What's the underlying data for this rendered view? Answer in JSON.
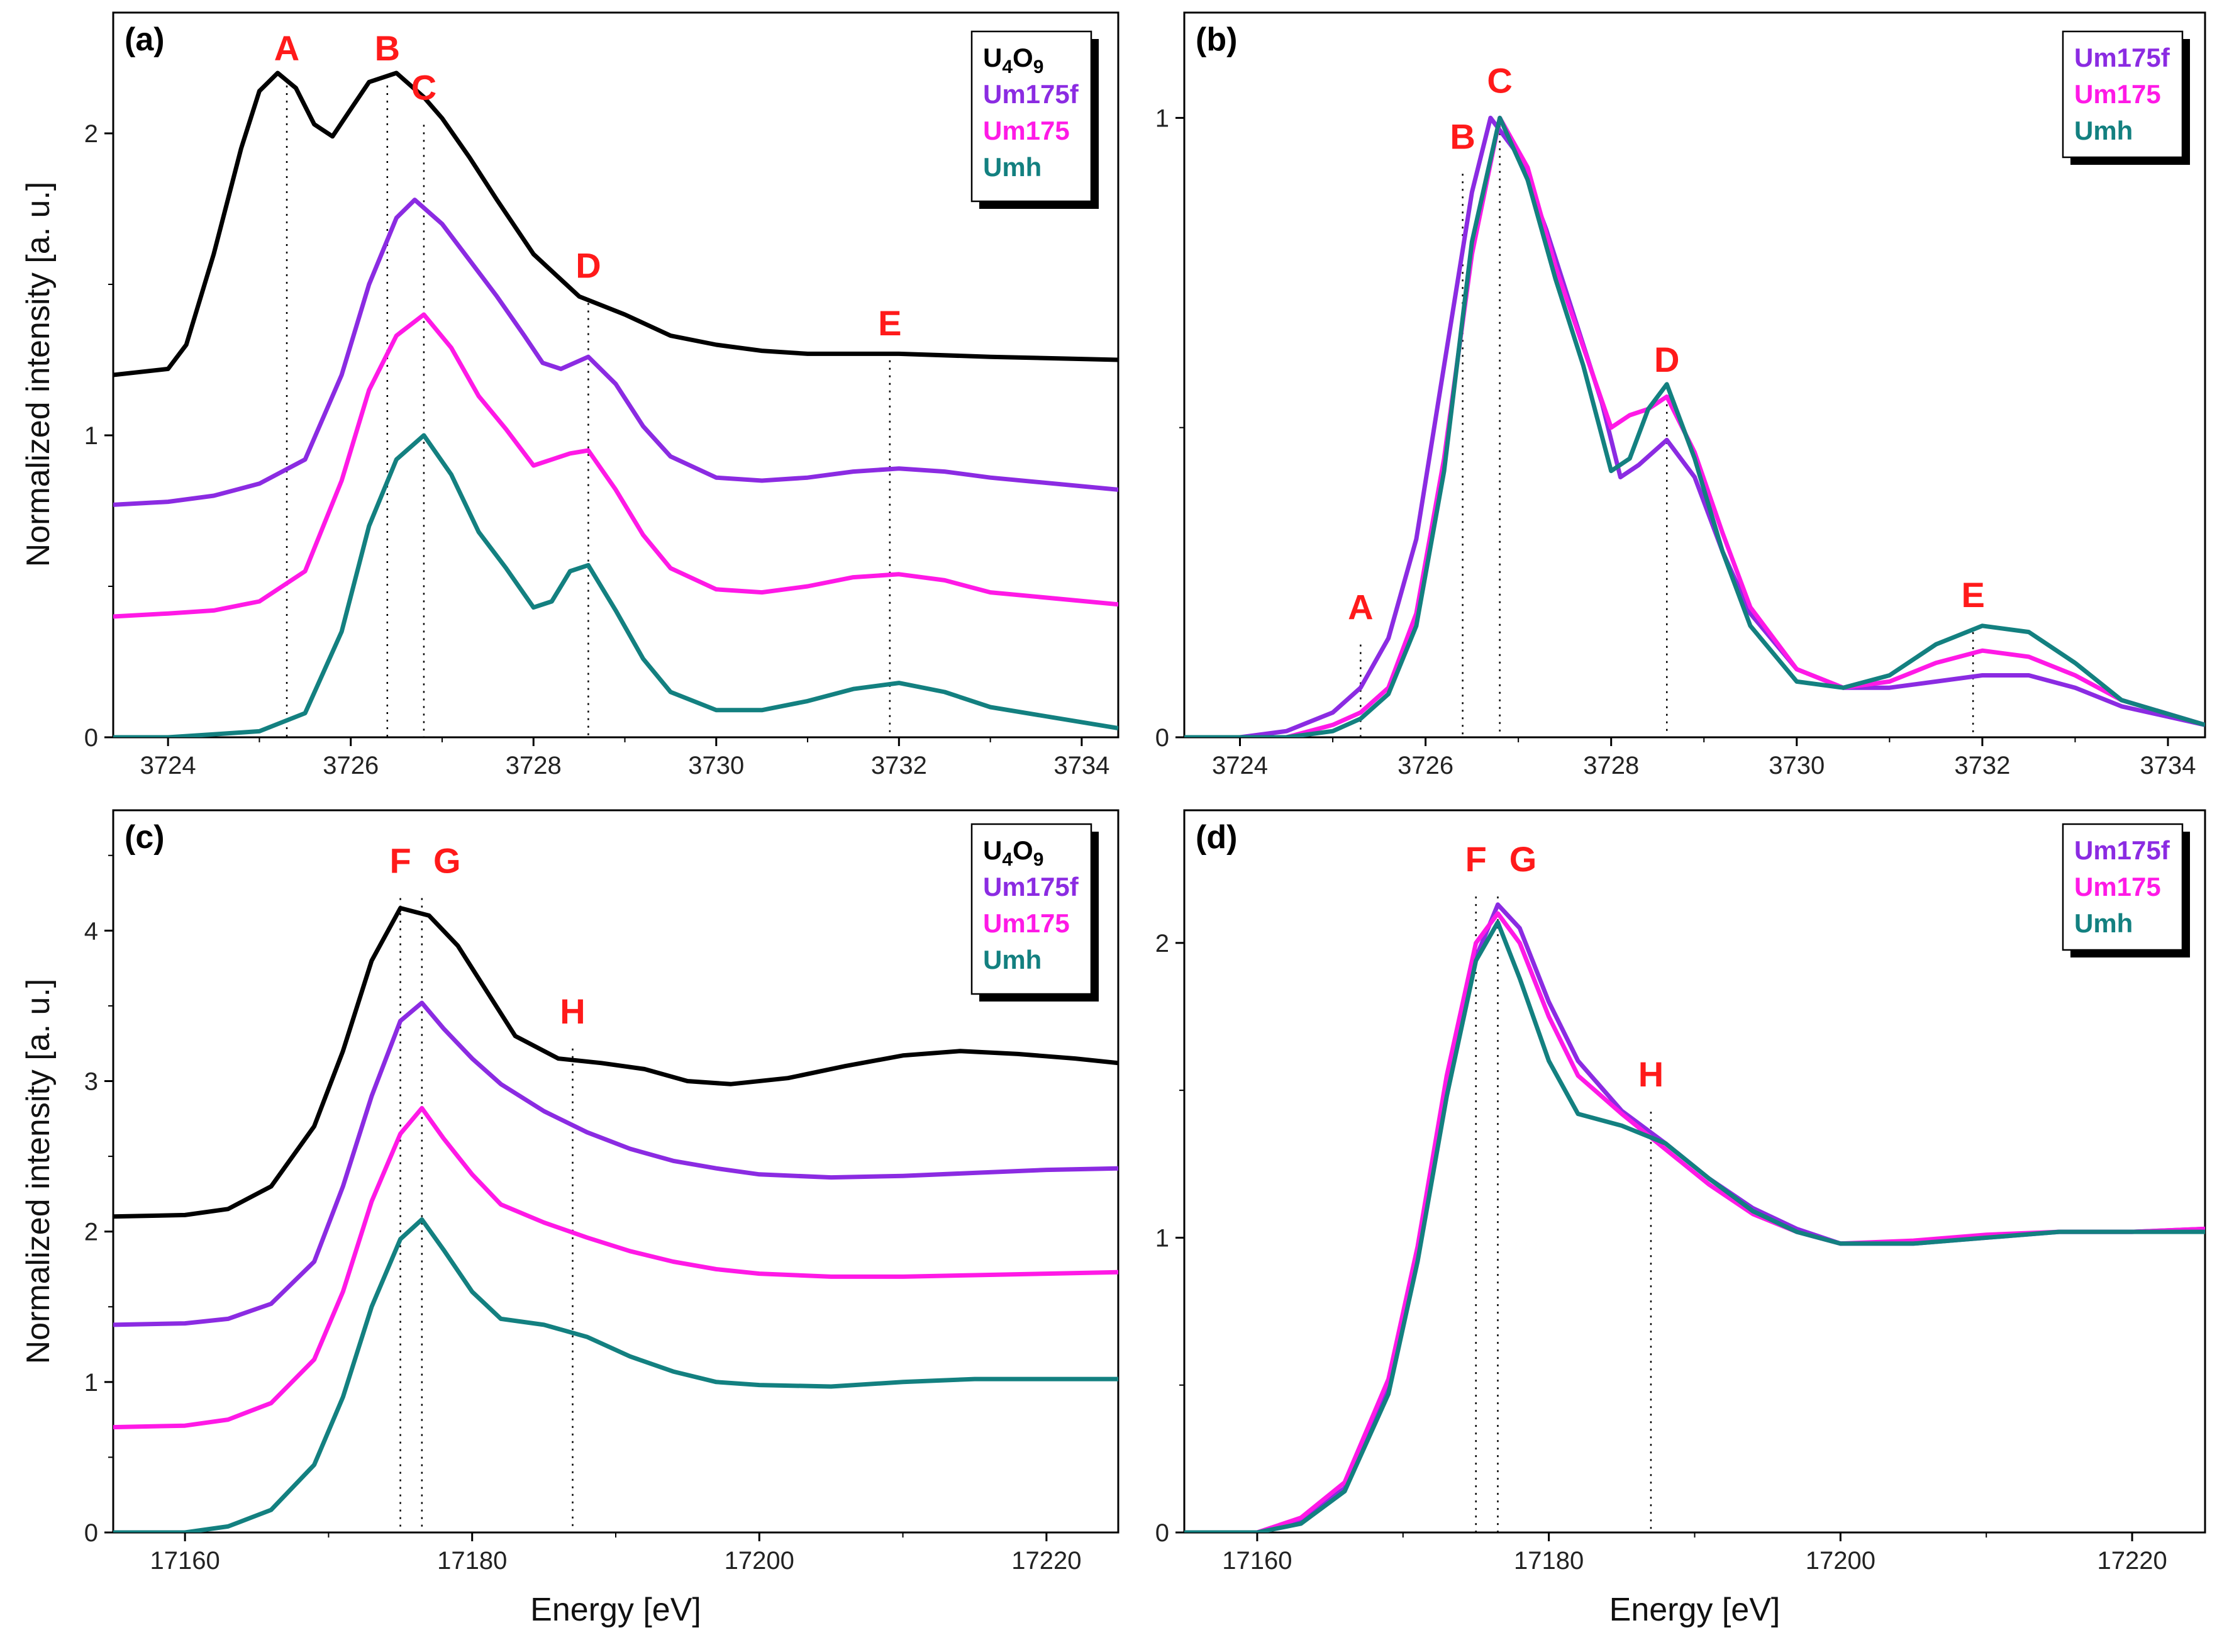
{
  "chart_data": [
    {
      "type": "line",
      "panel": "(a)",
      "xlabel": "",
      "ylabel": "Normalized intensity [a. u.]",
      "xlim": [
        3723.4,
        3734.4
      ],
      "ylim": [
        0,
        2.4
      ],
      "xticks": [
        "3724",
        "3726",
        "3728",
        "3730",
        "3732",
        "3734"
      ],
      "yticks": [
        "0",
        "1",
        "2"
      ],
      "legend": [
        "U4O9",
        "Um175f",
        "Um175",
        "Umh"
      ],
      "legend_position": "top-right",
      "peak_labels": [
        {
          "label": "A",
          "x": 3725.3,
          "y": 2.2
        },
        {
          "label": "B",
          "x": 3726.4,
          "y": 2.2
        },
        {
          "label": "C",
          "x": 3726.8,
          "y": 2.07
        },
        {
          "label": "D",
          "x": 3728.6,
          "y": 1.48
        },
        {
          "label": "E",
          "x": 3731.9,
          "y": 1.29
        }
      ],
      "series": [
        {
          "name": "U4O9",
          "color": "#000000",
          "x": [
            3723.4,
            3724.0,
            3724.2,
            3724.5,
            3724.8,
            3725.0,
            3725.2,
            3725.4,
            3725.6,
            3725.8,
            3726.0,
            3726.2,
            3726.5,
            3726.8,
            3727.0,
            3727.3,
            3727.6,
            3728.0,
            3728.5,
            3729.0,
            3729.5,
            3730.0,
            3730.5,
            3731.0,
            3732.0,
            3733.0,
            3734.4
          ],
          "y": [
            1.2,
            1.22,
            1.3,
            1.6,
            1.95,
            2.14,
            2.2,
            2.15,
            2.03,
            1.99,
            2.08,
            2.17,
            2.2,
            2.12,
            2.05,
            1.92,
            1.78,
            1.6,
            1.46,
            1.4,
            1.33,
            1.3,
            1.28,
            1.27,
            1.27,
            1.26,
            1.25
          ]
        },
        {
          "name": "Um175f",
          "color": "#8b2be2",
          "x": [
            3723.4,
            3724.0,
            3724.5,
            3725.0,
            3725.5,
            3725.9,
            3726.2,
            3726.5,
            3726.7,
            3727.0,
            3727.3,
            3727.6,
            3727.9,
            3728.1,
            3728.3,
            3728.6,
            3728.9,
            3729.2,
            3729.5,
            3730.0,
            3730.5,
            3731.0,
            3731.5,
            3732.0,
            3732.5,
            3733.0,
            3734.4
          ],
          "y": [
            0.77,
            0.78,
            0.8,
            0.84,
            0.92,
            1.2,
            1.5,
            1.72,
            1.78,
            1.7,
            1.58,
            1.46,
            1.33,
            1.24,
            1.22,
            1.26,
            1.17,
            1.03,
            0.93,
            0.86,
            0.85,
            0.86,
            0.88,
            0.89,
            0.88,
            0.86,
            0.82
          ]
        },
        {
          "name": "Um175",
          "color": "#ff19e6",
          "x": [
            3723.4,
            3724.0,
            3724.5,
            3725.0,
            3725.5,
            3725.9,
            3726.2,
            3726.5,
            3726.8,
            3727.1,
            3727.4,
            3727.7,
            3728.0,
            3728.2,
            3728.4,
            3728.6,
            3728.9,
            3729.2,
            3729.5,
            3730.0,
            3730.5,
            3731.0,
            3731.5,
            3732.0,
            3732.5,
            3733.0,
            3734.4
          ],
          "y": [
            0.4,
            0.41,
            0.42,
            0.45,
            0.55,
            0.85,
            1.15,
            1.33,
            1.4,
            1.29,
            1.13,
            1.02,
            0.9,
            0.92,
            0.94,
            0.95,
            0.82,
            0.67,
            0.56,
            0.49,
            0.48,
            0.5,
            0.53,
            0.54,
            0.52,
            0.48,
            0.44
          ]
        },
        {
          "name": "Umh",
          "color": "#138080",
          "x": [
            3723.4,
            3724.0,
            3724.5,
            3725.0,
            3725.5,
            3725.9,
            3726.2,
            3726.5,
            3726.8,
            3727.1,
            3727.4,
            3727.7,
            3728.0,
            3728.2,
            3728.4,
            3728.6,
            3728.9,
            3729.2,
            3729.5,
            3730.0,
            3730.5,
            3731.0,
            3731.5,
            3732.0,
            3732.5,
            3733.0,
            3734.4
          ],
          "y": [
            0.0,
            0.0,
            0.01,
            0.02,
            0.08,
            0.35,
            0.7,
            0.92,
            1.0,
            0.87,
            0.68,
            0.56,
            0.43,
            0.45,
            0.55,
            0.57,
            0.42,
            0.26,
            0.15,
            0.09,
            0.09,
            0.12,
            0.16,
            0.18,
            0.15,
            0.1,
            0.03
          ]
        }
      ]
    },
    {
      "type": "line",
      "panel": "(b)",
      "xlabel": "",
      "ylabel": "",
      "xlim": [
        3723.4,
        3734.4
      ],
      "ylim": [
        0,
        1.17
      ],
      "xticks": [
        "3724",
        "3726",
        "3728",
        "3730",
        "3732",
        "3734"
      ],
      "yticks": [
        "0",
        "1"
      ],
      "legend": [
        "Um175f",
        "Um175",
        "Umh"
      ],
      "legend_position": "top-right",
      "peak_labels": [
        {
          "label": "A",
          "x": 3725.3,
          "y": 0.17
        },
        {
          "label": "B",
          "x": 3726.4,
          "y": 0.93
        },
        {
          "label": "C",
          "x": 3726.8,
          "y": 1.02
        },
        {
          "label": "D",
          "x": 3728.6,
          "y": 0.57
        },
        {
          "label": "E",
          "x": 3731.9,
          "y": 0.19
        }
      ],
      "series": [
        {
          "name": "Um175f",
          "color": "#8b2be2",
          "x": [
            3723.4,
            3724.0,
            3724.5,
            3725.0,
            3725.3,
            3725.6,
            3725.9,
            3726.2,
            3726.5,
            3726.7,
            3727.0,
            3727.3,
            3727.6,
            3727.9,
            3728.1,
            3728.3,
            3728.6,
            3728.9,
            3729.2,
            3729.5,
            3730.0,
            3730.5,
            3731.0,
            3731.5,
            3732.0,
            3732.5,
            3733.0,
            3733.5,
            3734.4
          ],
          "y": [
            0.0,
            0.0,
            0.01,
            0.04,
            0.08,
            0.16,
            0.32,
            0.6,
            0.88,
            1.0,
            0.94,
            0.82,
            0.68,
            0.54,
            0.42,
            0.44,
            0.48,
            0.42,
            0.3,
            0.2,
            0.11,
            0.08,
            0.08,
            0.09,
            0.1,
            0.1,
            0.08,
            0.05,
            0.02
          ]
        },
        {
          "name": "Um175",
          "color": "#ff19e6",
          "x": [
            3723.4,
            3724.0,
            3724.5,
            3725.0,
            3725.3,
            3725.6,
            3725.9,
            3726.2,
            3726.5,
            3726.8,
            3727.1,
            3727.4,
            3727.7,
            3728.0,
            3728.2,
            3728.4,
            3728.6,
            3728.9,
            3729.2,
            3729.5,
            3730.0,
            3730.5,
            3731.0,
            3731.5,
            3732.0,
            3732.5,
            3733.0,
            3733.5,
            3734.4
          ],
          "y": [
            0.0,
            0.0,
            0.0,
            0.02,
            0.04,
            0.08,
            0.2,
            0.45,
            0.78,
            1.0,
            0.92,
            0.76,
            0.63,
            0.5,
            0.52,
            0.53,
            0.55,
            0.46,
            0.33,
            0.21,
            0.11,
            0.08,
            0.09,
            0.12,
            0.14,
            0.13,
            0.1,
            0.06,
            0.02
          ]
        },
        {
          "name": "Umh",
          "color": "#138080",
          "x": [
            3723.4,
            3724.0,
            3724.5,
            3725.0,
            3725.3,
            3725.6,
            3725.9,
            3726.2,
            3726.5,
            3726.8,
            3727.1,
            3727.4,
            3727.7,
            3728.0,
            3728.2,
            3728.4,
            3728.6,
            3728.9,
            3729.2,
            3729.5,
            3730.0,
            3730.5,
            3731.0,
            3731.5,
            3732.0,
            3732.5,
            3733.0,
            3733.5,
            3734.4
          ],
          "y": [
            0.0,
            0.0,
            0.0,
            0.01,
            0.03,
            0.07,
            0.18,
            0.43,
            0.8,
            1.0,
            0.9,
            0.74,
            0.6,
            0.43,
            0.45,
            0.53,
            0.57,
            0.45,
            0.3,
            0.18,
            0.09,
            0.08,
            0.1,
            0.15,
            0.18,
            0.17,
            0.12,
            0.06,
            0.02
          ]
        }
      ]
    },
    {
      "type": "line",
      "panel": "(c)",
      "xlabel": "Energy [eV]",
      "ylabel": "Normalized intensity [a. u.]",
      "xlim": [
        17155,
        17225
      ],
      "ylim": [
        0,
        4.8
      ],
      "xticks": [
        "17160",
        "17180",
        "17200",
        "17220"
      ],
      "yticks": [
        "0",
        "1",
        "2",
        "3",
        "4"
      ],
      "legend": [
        "U4O9",
        "Um175f",
        "Um175",
        "Umh"
      ],
      "legend_position": "top-right",
      "peak_labels": [
        {
          "label": "F",
          "x": 17175.0,
          "y": 4.3
        },
        {
          "label": "G",
          "x": 17176.5,
          "y": 4.3
        },
        {
          "label": "H",
          "x": 17187.0,
          "y": 3.3
        }
      ],
      "series": [
        {
          "name": "U4O9",
          "color": "#000000",
          "x": [
            17155,
            17160,
            17163,
            17166,
            17169,
            17171,
            17173,
            17175,
            17177,
            17179,
            17181,
            17183,
            17186,
            17189,
            17192,
            17195,
            17198,
            17202,
            17206,
            17210,
            17214,
            17218,
            17222,
            17225
          ],
          "y": [
            2.1,
            2.11,
            2.15,
            2.3,
            2.7,
            3.2,
            3.8,
            4.15,
            4.1,
            3.9,
            3.6,
            3.3,
            3.15,
            3.12,
            3.08,
            3.0,
            2.98,
            3.02,
            3.1,
            3.17,
            3.2,
            3.18,
            3.15,
            3.12
          ]
        },
        {
          "name": "Um175f",
          "color": "#8b2be2",
          "x": [
            17155,
            17160,
            17163,
            17166,
            17169,
            17171,
            17173,
            17175,
            17176.5,
            17178,
            17180,
            17182,
            17185,
            17188,
            17191,
            17194,
            17197,
            17200,
            17205,
            17210,
            17215,
            17220,
            17225
          ],
          "y": [
            1.38,
            1.39,
            1.42,
            1.52,
            1.8,
            2.3,
            2.9,
            3.4,
            3.52,
            3.35,
            3.15,
            2.98,
            2.8,
            2.66,
            2.55,
            2.47,
            2.42,
            2.38,
            2.36,
            2.37,
            2.39,
            2.41,
            2.42
          ]
        },
        {
          "name": "Um175",
          "color": "#ff19e6",
          "x": [
            17155,
            17160,
            17163,
            17166,
            17169,
            17171,
            17173,
            17175,
            17176.5,
            17178,
            17180,
            17182,
            17185,
            17188,
            17191,
            17194,
            17197,
            17200,
            17205,
            17210,
            17215,
            17220,
            17225
          ],
          "y": [
            0.7,
            0.71,
            0.75,
            0.86,
            1.15,
            1.6,
            2.2,
            2.65,
            2.82,
            2.62,
            2.38,
            2.18,
            2.06,
            1.96,
            1.87,
            1.8,
            1.75,
            1.72,
            1.7,
            1.7,
            1.71,
            1.72,
            1.73
          ]
        },
        {
          "name": "Umh",
          "color": "#138080",
          "x": [
            17155,
            17160,
            17163,
            17166,
            17169,
            17171,
            17173,
            17175,
            17176.5,
            17178,
            17180,
            17182,
            17185,
            17188,
            17191,
            17194,
            17197,
            17200,
            17205,
            17210,
            17215,
            17220,
            17225
          ],
          "y": [
            0.0,
            0.0,
            0.04,
            0.15,
            0.45,
            0.9,
            1.5,
            1.95,
            2.08,
            1.88,
            1.6,
            1.42,
            1.38,
            1.3,
            1.17,
            1.07,
            1.0,
            0.98,
            0.97,
            1.0,
            1.02,
            1.02,
            1.02
          ]
        }
      ]
    },
    {
      "type": "line",
      "panel": "(d)",
      "xlabel": "Energy [eV]",
      "ylabel": "",
      "xlim": [
        17155,
        17225
      ],
      "ylim": [
        0,
        2.45
      ],
      "xticks": [
        "17160",
        "17180",
        "17200",
        "17220"
      ],
      "yticks": [
        "0",
        "1",
        "2"
      ],
      "legend": [
        "Um175f",
        "Um175",
        "Umh"
      ],
      "legend_position": "top-right",
      "peak_labels": [
        {
          "label": "F",
          "x": 17175.0,
          "y": 2.2
        },
        {
          "label": "G",
          "x": 17176.5,
          "y": 2.2
        },
        {
          "label": "H",
          "x": 17187.0,
          "y": 1.47
        }
      ],
      "series": [
        {
          "name": "Um175f",
          "color": "#8b2be2",
          "x": [
            17155,
            17160,
            17163,
            17166,
            17169,
            17171,
            17173,
            17175,
            17176.5,
            17178,
            17180,
            17182,
            17185,
            17188,
            17191,
            17194,
            17197,
            17200,
            17205,
            17210,
            17215,
            17220,
            17225
          ],
          "y": [
            0.0,
            0.0,
            0.04,
            0.15,
            0.5,
            0.95,
            1.5,
            1.95,
            2.13,
            2.05,
            1.8,
            1.6,
            1.43,
            1.32,
            1.2,
            1.1,
            1.03,
            0.98,
            0.98,
            1.0,
            1.02,
            1.02,
            1.03
          ]
        },
        {
          "name": "Um175",
          "color": "#ff19e6",
          "x": [
            17155,
            17160,
            17163,
            17166,
            17169,
            17171,
            17173,
            17175,
            17176.5,
            17178,
            17180,
            17182,
            17185,
            17188,
            17191,
            17194,
            17197,
            17200,
            17205,
            17210,
            17215,
            17220,
            17225
          ],
          "y": [
            0.0,
            0.0,
            0.05,
            0.17,
            0.52,
            0.97,
            1.55,
            2.0,
            2.1,
            2.0,
            1.75,
            1.55,
            1.42,
            1.3,
            1.18,
            1.08,
            1.02,
            0.98,
            0.99,
            1.01,
            1.02,
            1.02,
            1.03
          ]
        },
        {
          "name": "Umh",
          "color": "#138080",
          "x": [
            17155,
            17160,
            17163,
            17166,
            17169,
            17171,
            17173,
            17175,
            17176.5,
            17178,
            17180,
            17182,
            17185,
            17188,
            17191,
            17194,
            17197,
            17200,
            17205,
            17210,
            17215,
            17220,
            17225
          ],
          "y": [
            0.0,
            0.0,
            0.03,
            0.14,
            0.47,
            0.92,
            1.48,
            1.94,
            2.07,
            1.88,
            1.6,
            1.42,
            1.38,
            1.32,
            1.2,
            1.09,
            1.02,
            0.98,
            0.98,
            1.0,
            1.02,
            1.02,
            1.02
          ]
        }
      ]
    }
  ]
}
